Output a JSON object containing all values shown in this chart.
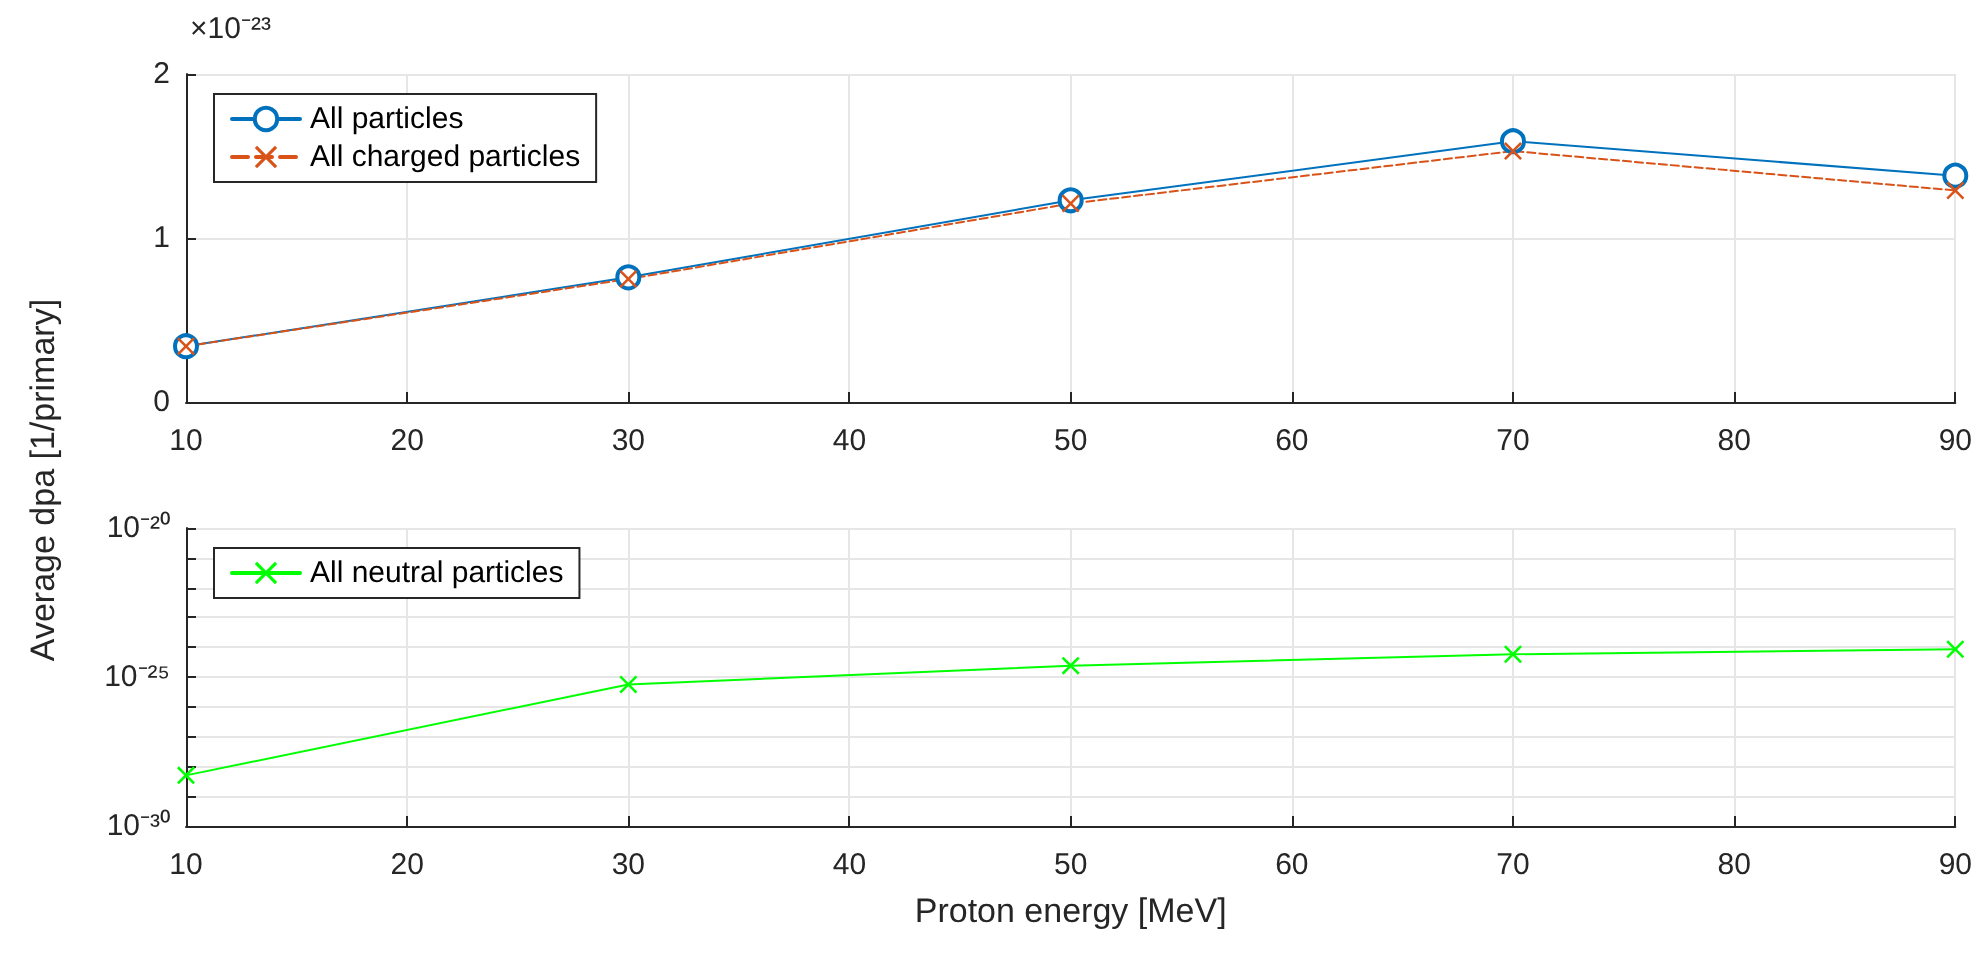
{
  "chart_data": [
    {
      "type": "line",
      "ylabel": "Average dpa [1/primary]",
      "annotations": [
        "×10⁻²³"
      ],
      "x": [
        10,
        30,
        50,
        70,
        90
      ],
      "xlim": [
        10,
        90
      ],
      "xticks": [
        10,
        20,
        30,
        40,
        50,
        60,
        70,
        80,
        90
      ],
      "ylim": [
        0,
        2
      ],
      "yticks": [
        0,
        1,
        2
      ],
      "grid": true,
      "legend": "top left",
      "series": [
        {
          "name": "All particles",
          "color": "#0072bd",
          "marker": "circle",
          "line_style": "solid",
          "values": [
            0.34,
            0.76,
            1.23,
            1.59,
            1.38
          ]
        },
        {
          "name": "All charged particles",
          "color": "#d95319",
          "marker": "cross",
          "line_style": "dashed",
          "values": [
            0.34,
            0.75,
            1.21,
            1.53,
            1.29
          ]
        }
      ]
    },
    {
      "type": "line",
      "xlabel": "Proton energy [MeV]",
      "log": "y",
      "x": [
        10,
        30,
        50,
        70,
        90
      ],
      "xlim": [
        10,
        90
      ],
      "xticks": [
        10,
        20,
        30,
        40,
        50,
        60,
        70,
        80,
        90
      ],
      "ylim": [
        1e-30,
        1e-20
      ],
      "yticks": [
        {
          "value": 1e-30,
          "label": "10⁻³⁰"
        },
        {
          "value": 1e-29,
          "label": null
        },
        {
          "value": 1e-28,
          "label": null
        },
        {
          "value": 1e-27,
          "label": null
        },
        {
          "value": 1e-26,
          "label": null
        },
        {
          "value": 1e-25,
          "label": "10⁻²⁵"
        },
        {
          "value": 1e-24,
          "label": null
        },
        {
          "value": 1e-23,
          "label": null
        },
        {
          "value": 1e-22,
          "label": null
        },
        {
          "value": 1e-21,
          "label": null
        },
        {
          "value": 1e-20,
          "label": "10⁻²⁰"
        }
      ],
      "grid": true,
      "legend": "top left",
      "series": [
        {
          "name": "All neutral particles",
          "color": "#00ff00",
          "marker": "cross",
          "line_style": "solid",
          "values": [
            5e-29,
            5.6e-26,
            2.4e-25,
            5.8e-25,
            8.5e-25
          ]
        }
      ]
    }
  ]
}
